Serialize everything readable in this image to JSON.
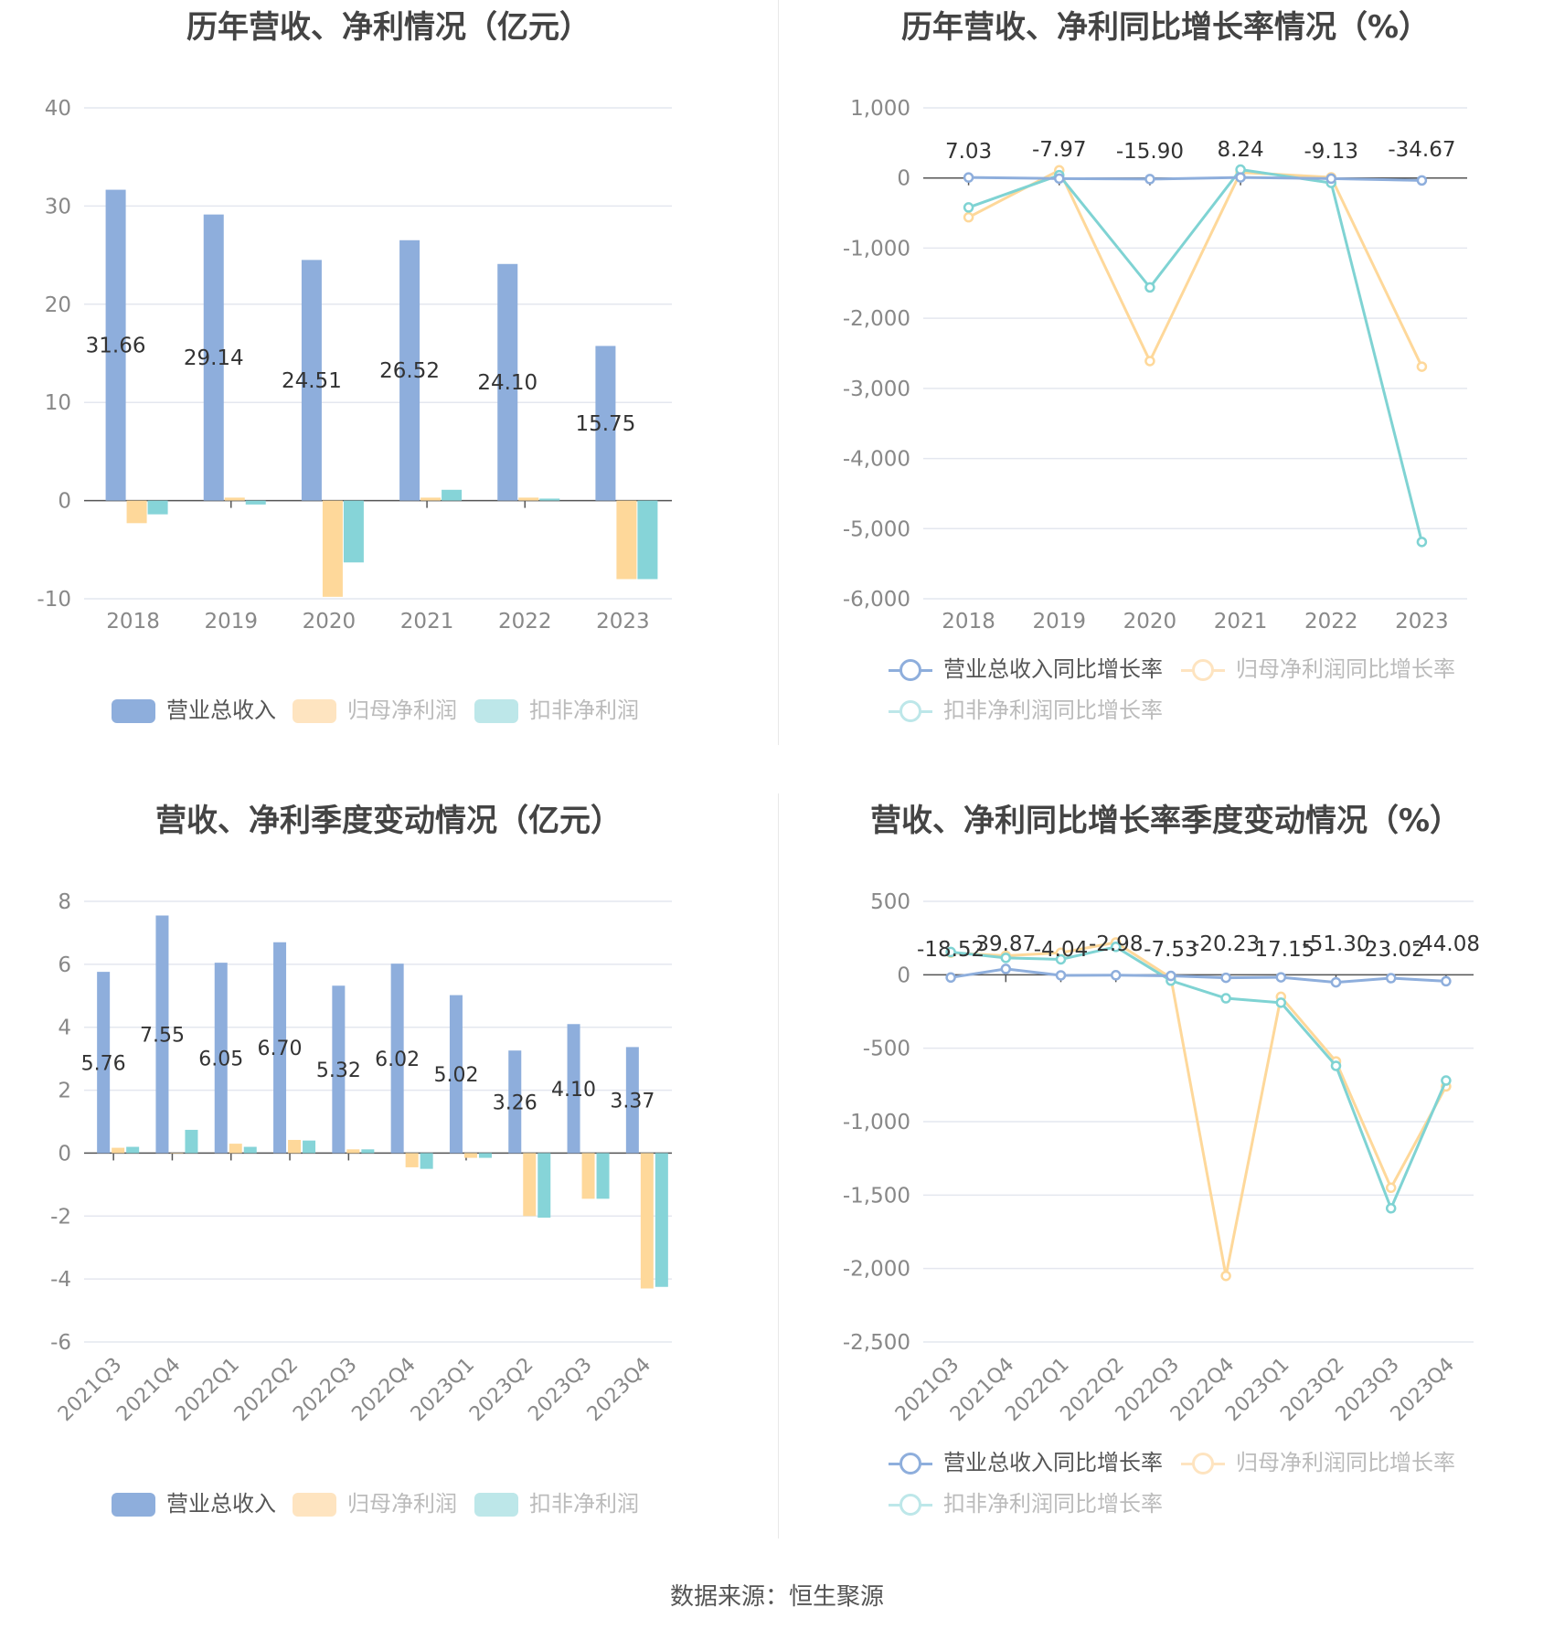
{
  "colors": {
    "revenue": "#8eaedc",
    "net": "#fed89a",
    "deducted": "#86d4d8",
    "revenue_line": "#8eaedc",
    "net_line": "#fed89a",
    "deducted_line": "#7fd3d3",
    "grid": "#e4e7ef",
    "axis_text": "#888888",
    "label": "#333333"
  },
  "source": "数据来源：恒生聚源",
  "legend": {
    "bars": [
      {
        "name": "营业总收入",
        "color": "#8eaedc"
      },
      {
        "name": "归母净利润",
        "color": "#fee4c0"
      },
      {
        "name": "扣非净利润",
        "color": "#bde7e9"
      }
    ],
    "lines": [
      {
        "name": "营业总收入同比增长率",
        "color": "#8eaedc"
      },
      {
        "name": "归母净利润同比增长率",
        "color": "#fee4c0"
      },
      {
        "name": "扣非净利润同比增长率",
        "color": "#bde7e9"
      }
    ]
  },
  "chart_data": [
    {
      "type": "bar",
      "title": "历年营收、净利情况（亿元）",
      "categories": [
        "2018",
        "2019",
        "2020",
        "2021",
        "2022",
        "2023"
      ],
      "ylim": [
        -10,
        40
      ],
      "yticks": [
        "40",
        "30",
        "20",
        "10",
        "0",
        "-10"
      ],
      "series": [
        {
          "name": "营业总收入",
          "values": [
            31.66,
            29.14,
            24.51,
            26.52,
            24.1,
            15.75
          ],
          "labels": [
            "31.66",
            "29.14",
            "24.51",
            "26.52",
            "24.10",
            "15.75"
          ]
        },
        {
          "name": "归母净利润",
          "values": [
            -2.3,
            0.3,
            -9.8,
            0.3,
            0.3,
            -8.0
          ]
        },
        {
          "name": "扣非净利润",
          "values": [
            -1.4,
            -0.4,
            -6.3,
            1.1,
            0.2,
            -8.0
          ]
        }
      ]
    },
    {
      "type": "line",
      "title": "历年营收、净利同比增长率情况（%）",
      "categories": [
        "2018",
        "2019",
        "2020",
        "2021",
        "2022",
        "2023"
      ],
      "ylim": [
        -6000,
        1000
      ],
      "yticks": [
        "1,000",
        "0",
        "-1,000",
        "-2,000",
        "-3,000",
        "-4,000",
        "-5,000",
        "-6,000"
      ],
      "series": [
        {
          "name": "营业总收入同比增长率",
          "values": [
            7.03,
            -7.97,
            -15.9,
            8.24,
            -9.13,
            -34.67
          ],
          "labels": [
            "7.03",
            "-7.97",
            "-15.90",
            "8.24",
            "-9.13",
            "-34.67"
          ]
        },
        {
          "name": "归母净利润同比增长率",
          "values": [
            -560,
            110,
            -2610,
            80,
            10,
            -2690
          ]
        },
        {
          "name": "扣非净利润同比增长率",
          "values": [
            -420,
            40,
            -1560,
            120,
            -70,
            -5190
          ]
        }
      ]
    },
    {
      "type": "bar",
      "title": "营收、净利季度变动情况（亿元）",
      "categories": [
        "2021Q3",
        "2021Q4",
        "2022Q1",
        "2022Q2",
        "2022Q3",
        "2022Q4",
        "2023Q1",
        "2023Q2",
        "2023Q3",
        "2023Q4"
      ],
      "ylim": [
        -6,
        8
      ],
      "yticks": [
        "8",
        "6",
        "4",
        "2",
        "0",
        "-2",
        "-4",
        "-6"
      ],
      "series": [
        {
          "name": "营业总收入",
          "values": [
            5.76,
            7.55,
            6.05,
            6.7,
            5.32,
            6.02,
            5.02,
            3.26,
            4.1,
            3.37
          ],
          "labels": [
            "5.76",
            "7.55",
            "6.05",
            "6.70",
            "5.32",
            "6.02",
            "5.02",
            "3.26",
            "4.10",
            "3.37"
          ]
        },
        {
          "name": "归母净利润",
          "values": [
            0.17,
            0.0,
            0.3,
            0.42,
            0.12,
            -0.45,
            -0.15,
            -2.0,
            -1.45,
            -4.3
          ]
        },
        {
          "name": "扣非净利润",
          "values": [
            0.2,
            0.74,
            0.2,
            0.4,
            0.12,
            -0.5,
            -0.15,
            -2.05,
            -1.45,
            -4.25
          ]
        }
      ]
    },
    {
      "type": "line",
      "title": "营收、净利同比增长率季度变动情况（%）",
      "categories": [
        "2021Q3",
        "2021Q4",
        "2022Q1",
        "2022Q2",
        "2022Q3",
        "2022Q4",
        "2023Q1",
        "2023Q2",
        "2023Q3",
        "2023Q4"
      ],
      "ylim": [
        -2500,
        500
      ],
      "yticks": [
        "500",
        "0",
        "-500",
        "-1,000",
        "-1,500",
        "-2,000",
        "-2,500"
      ],
      "series": [
        {
          "name": "营业总收入同比增长率",
          "values": [
            -18.52,
            39.87,
            -4.04,
            -2.98,
            -7.53,
            -20.23,
            -17.15,
            -51.3,
            -23.02,
            -44.08
          ],
          "labels": [
            "-18.52",
            "39.87",
            "-4.04",
            "-2.98",
            "-7.53",
            "-20.23",
            "-17.15",
            "-51.30",
            "-23.02",
            "-44.08"
          ]
        },
        {
          "name": "归母净利润同比增长率",
          "values": [
            150,
            130,
            150,
            220,
            -20,
            -2050,
            -150,
            -590,
            -1450,
            -760
          ]
        },
        {
          "name": "扣非净利润同比增长率",
          "values": [
            155,
            115,
            105,
            190,
            -40,
            -160,
            -190,
            -620,
            -1590,
            -720
          ]
        }
      ]
    }
  ]
}
